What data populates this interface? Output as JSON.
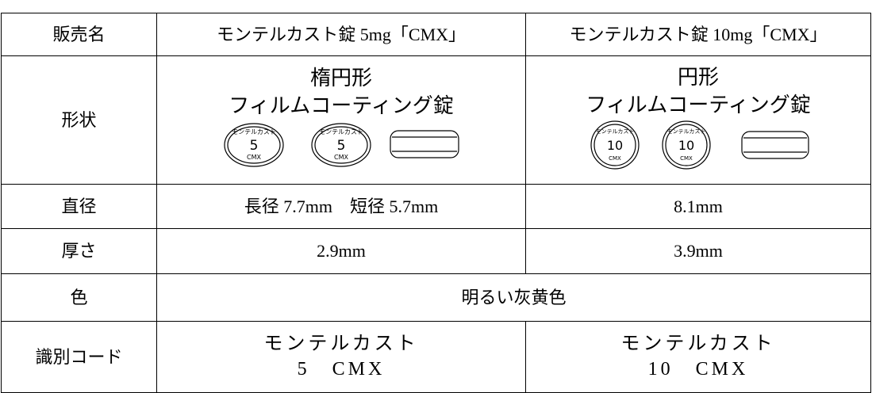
{
  "table": {
    "header": [
      "販売名",
      "モンテルカスト錠 5mg「CMX」",
      "モンテルカスト錠 10mg「CMX」"
    ],
    "shape": {
      "label": "形状",
      "cells": [
        {
          "lines": [
            "楕円形",
            "フィルムコーティング錠"
          ],
          "imprint": {
            "arc": "モンテルカスト",
            "number": "5",
            "bottom": "CMX"
          }
        },
        {
          "lines": [
            "円形",
            "フィルムコーティング錠"
          ],
          "imprint": {
            "arc": "モンテルカスト",
            "number": "10",
            "bottom": "CMX"
          }
        }
      ]
    },
    "diameter": {
      "label": "直径",
      "cells": [
        "長径 7.7mm　短径 5.7mm",
        "8.1mm"
      ]
    },
    "thickness": {
      "label": "厚さ",
      "cells": [
        "2.9mm",
        "3.9mm"
      ]
    },
    "color": {
      "label": "色",
      "value": "明るい灰黄色"
    },
    "code": {
      "label": "識別コード",
      "cells": [
        [
          "モンテルカスト",
          "5　CMX"
        ],
        [
          "モンテルカスト",
          "10　CMX"
        ]
      ]
    }
  }
}
